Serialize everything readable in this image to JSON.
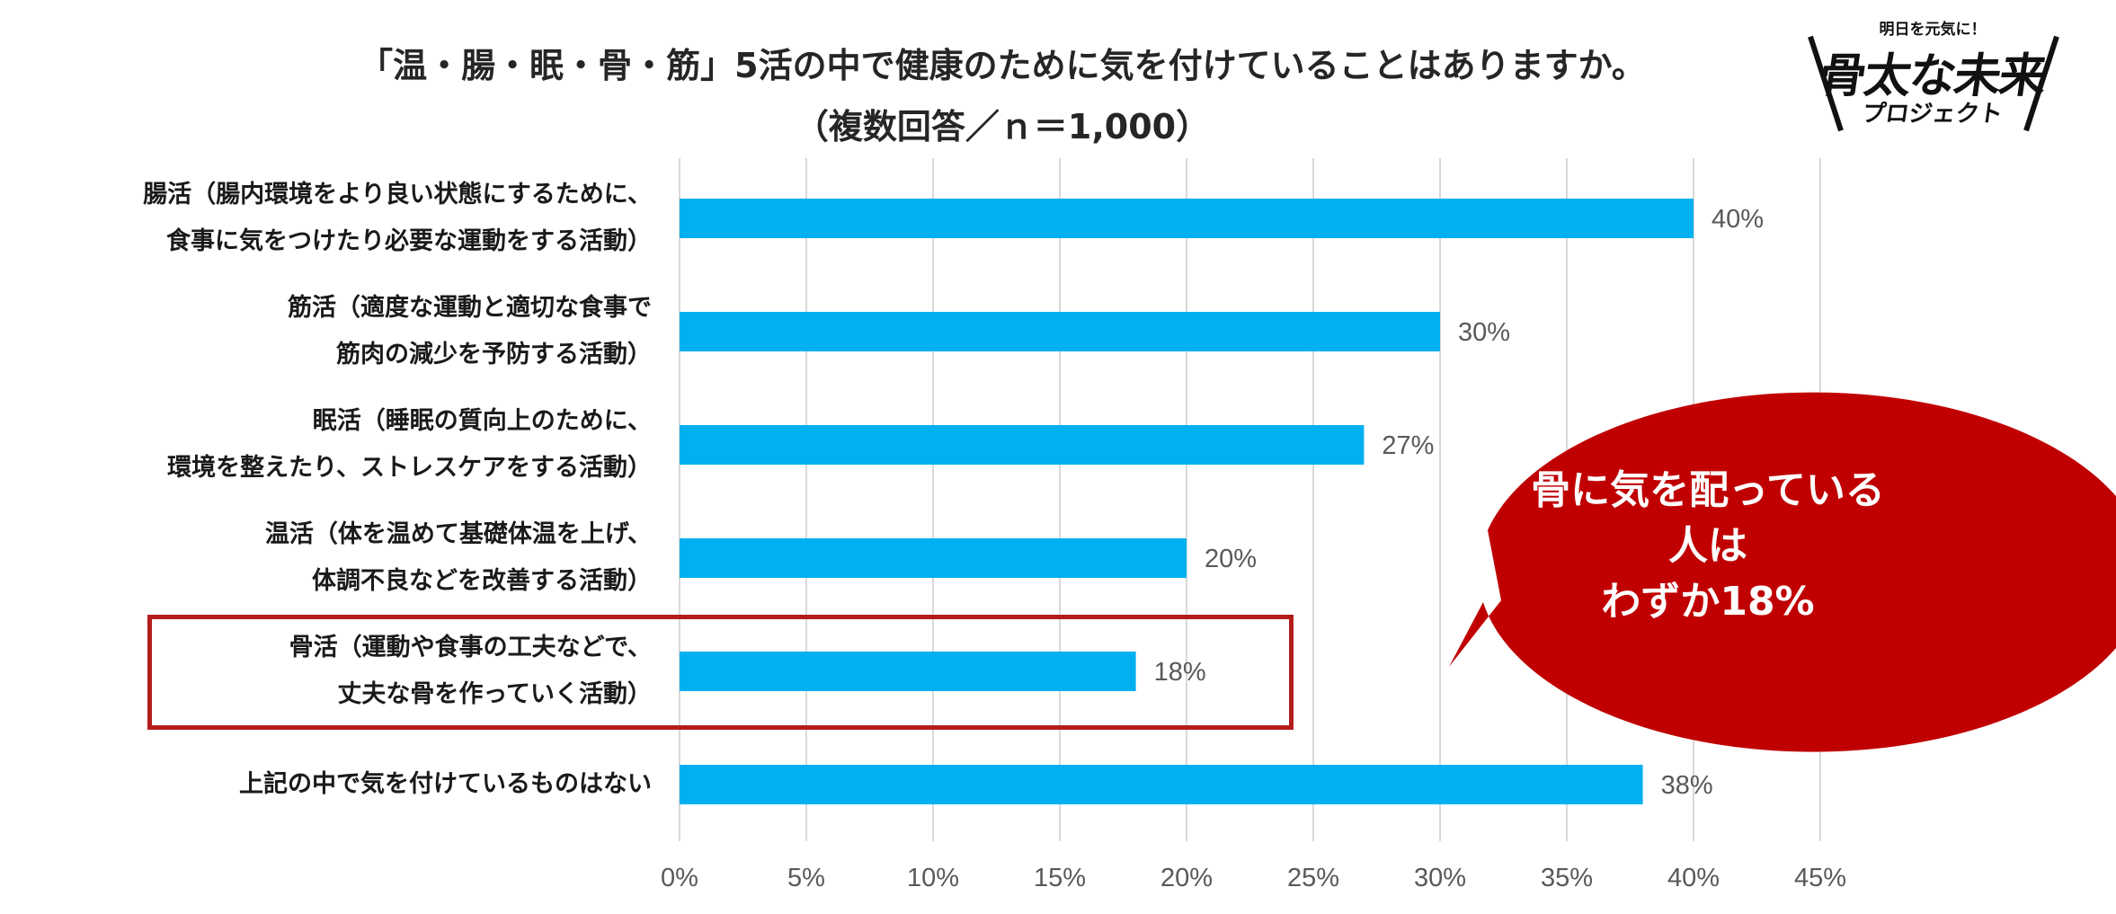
{
  "title_line1": "「温・腸・眠・骨・筋」5活の中で健康のために気を付けていることはありますか。",
  "title_line2": "（複数回答／ｎ＝1,000）",
  "logo": {
    "tagline": "明日を元気に！",
    "name": "骨太な未来",
    "sub": "プロジェクト"
  },
  "callout": {
    "line1": "骨に気を配っている人は",
    "line2": "わずか18%",
    "color": "#c00000"
  },
  "colors": {
    "bar": "#00b0f0",
    "highlight": "#b41c1c",
    "grid": "#d9d9d9"
  },
  "chart_data": {
    "type": "bar",
    "orientation": "horizontal",
    "categories": [
      [
        "腸活（腸内環境をより良い状態にするために、",
        "食事に気をつけたり必要な運動をする活動）"
      ],
      [
        "筋活（適度な運動と適切な食事で",
        "筋肉の減少を予防する活動）"
      ],
      [
        "眠活（睡眠の質向上のために、",
        "環境を整えたり、ストレスケアをする活動）"
      ],
      [
        "温活（体を温めて基礎体温を上げ、",
        "体調不良などを改善する活動）"
      ],
      [
        "骨活（運動や食事の工夫などで、",
        "丈夫な骨を作っていく活動）"
      ],
      [
        "上記の中で気を付けているものはない"
      ]
    ],
    "values": [
      40,
      30,
      27,
      20,
      18,
      38
    ],
    "value_labels": [
      "40%",
      "30%",
      "27%",
      "20%",
      "18%",
      "38%"
    ],
    "xlim": [
      0,
      45
    ],
    "xticks": [
      0,
      5,
      10,
      15,
      20,
      25,
      30,
      35,
      40,
      45
    ],
    "xtick_labels": [
      "0%",
      "5%",
      "10%",
      "15%",
      "20%",
      "25%",
      "30%",
      "35%",
      "40%",
      "45%"
    ],
    "grid": true,
    "highlighted_category_index": 4
  }
}
